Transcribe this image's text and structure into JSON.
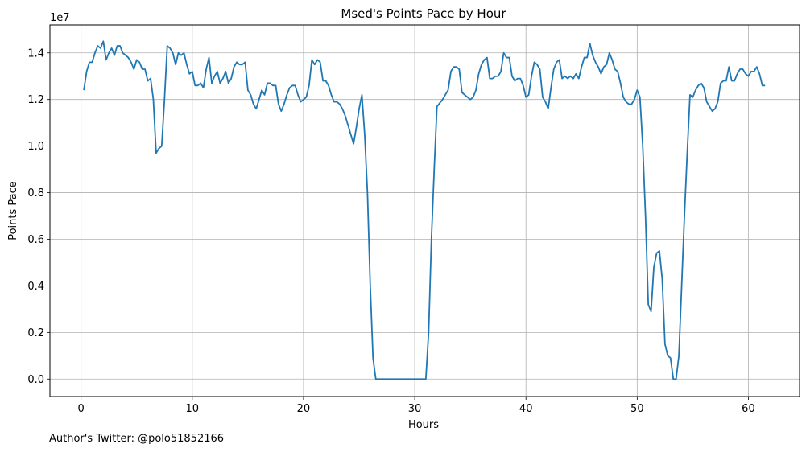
{
  "chart_data": {
    "type": "line",
    "title": "Msed's Points Pace by Hour",
    "xlabel": "Hours",
    "ylabel": "Points Pace",
    "y_multiplier_label": "1e7",
    "xlim": [
      -2.8,
      64.6
    ],
    "ylim": [
      -0.075,
      1.52
    ],
    "x_ticks": [
      0,
      10,
      20,
      30,
      40,
      50,
      60
    ],
    "y_ticks": [
      0.0,
      0.2,
      0.4,
      0.6,
      0.8,
      1.0,
      1.2,
      1.4
    ],
    "y_tick_labels": [
      "0.0",
      "0.2",
      "0.4",
      "0.6",
      "0.8",
      "1.0",
      "1.2",
      "1.4"
    ],
    "grid": true,
    "line_color": "#1f77b4",
    "series": [
      {
        "x": [
          0.25,
          0.5,
          0.75,
          1.0,
          1.25,
          1.5,
          1.75,
          2.0,
          2.25,
          2.5,
          2.75,
          3.0,
          3.25,
          3.5,
          3.75,
          4.0,
          4.25,
          4.5,
          4.75,
          5.0,
          5.25,
          5.5,
          5.75,
          6.0,
          6.25,
          6.5,
          6.75,
          7.0,
          7.25,
          7.5,
          7.75,
          8.0,
          8.25,
          8.5,
          8.75,
          9.0,
          9.25,
          9.5,
          9.75,
          10.0,
          10.25,
          10.5,
          10.75,
          11.0,
          11.25,
          11.5,
          11.75,
          12.0,
          12.25,
          12.5,
          12.75,
          13.0,
          13.25,
          13.5,
          13.75,
          14.0,
          14.25,
          14.5,
          14.75,
          15.0,
          15.25,
          15.5,
          15.75,
          16.0,
          16.25,
          16.5,
          16.75,
          17.0,
          17.25,
          17.5,
          17.75,
          18.0,
          18.25,
          18.5,
          18.75,
          19.0,
          19.25,
          19.5,
          19.75,
          20.0,
          20.25,
          20.5,
          20.75,
          21.0,
          21.25,
          21.5,
          21.75,
          22.0,
          22.25,
          22.5,
          22.75,
          23.0,
          23.25,
          23.5,
          23.75,
          24.0,
          24.25,
          24.5,
          24.75,
          25.0,
          25.25,
          25.5,
          25.75,
          26.0,
          26.25,
          26.5,
          27.0,
          28.0,
          29.0,
          30.0,
          31.0,
          31.25,
          31.5,
          31.75,
          32.0,
          32.5,
          33.0,
          33.25,
          33.5,
          33.75,
          34.0,
          34.25,
          34.5,
          35.0,
          35.25,
          35.5,
          35.75,
          36.0,
          36.25,
          36.5,
          36.75,
          37.0,
          37.25,
          37.5,
          37.75,
          38.0,
          38.25,
          38.5,
          38.75,
          39.0,
          39.25,
          39.5,
          39.75,
          40.0,
          40.25,
          40.5,
          40.75,
          41.0,
          41.25,
          41.5,
          41.75,
          42.0,
          42.25,
          42.5,
          42.75,
          43.0,
          43.25,
          43.5,
          43.75,
          44.0,
          44.25,
          44.5,
          44.75,
          45.0,
          45.25,
          45.5,
          45.75,
          46.0,
          46.25,
          46.5,
          46.75,
          47.0,
          47.25,
          47.5,
          47.75,
          48.0,
          48.25,
          48.5,
          48.75,
          49.0,
          49.25,
          49.5,
          49.75,
          50.0,
          50.25,
          50.5,
          50.75,
          51.0,
          51.25,
          51.5,
          51.75,
          52.0,
          52.25,
          52.5,
          52.75,
          53.0,
          53.25,
          53.5,
          53.75,
          54.0,
          54.25,
          54.5,
          54.75,
          55.0,
          55.25,
          55.5,
          55.75,
          56.0,
          56.25,
          56.5,
          56.75,
          57.0,
          57.25,
          57.5,
          57.75,
          58.0,
          58.25,
          58.5,
          58.75,
          59.0,
          59.25,
          59.5,
          59.75,
          60.0,
          60.25,
          60.5,
          60.75,
          61.0,
          61.25,
          61.5
        ],
        "values": [
          1.24,
          1.32,
          1.36,
          1.36,
          1.4,
          1.43,
          1.42,
          1.45,
          1.37,
          1.4,
          1.42,
          1.39,
          1.43,
          1.43,
          1.4,
          1.39,
          1.38,
          1.36,
          1.33,
          1.37,
          1.36,
          1.33,
          1.33,
          1.28,
          1.29,
          1.2,
          0.97,
          0.99,
          1.0,
          1.2,
          1.43,
          1.42,
          1.4,
          1.35,
          1.4,
          1.39,
          1.4,
          1.35,
          1.31,
          1.32,
          1.26,
          1.26,
          1.27,
          1.25,
          1.33,
          1.38,
          1.27,
          1.3,
          1.32,
          1.27,
          1.29,
          1.32,
          1.27,
          1.29,
          1.34,
          1.36,
          1.35,
          1.35,
          1.36,
          1.24,
          1.22,
          1.18,
          1.16,
          1.2,
          1.24,
          1.22,
          1.27,
          1.27,
          1.26,
          1.26,
          1.18,
          1.15,
          1.18,
          1.22,
          1.25,
          1.26,
          1.26,
          1.22,
          1.19,
          1.2,
          1.21,
          1.26,
          1.37,
          1.35,
          1.37,
          1.36,
          1.28,
          1.28,
          1.26,
          1.22,
          1.19,
          1.19,
          1.18,
          1.16,
          1.13,
          1.09,
          1.05,
          1.01,
          1.08,
          1.16,
          1.22,
          1.05,
          0.8,
          0.4,
          0.09,
          0.0,
          0.0,
          0.0,
          0.0,
          0.0,
          0.0,
          0.2,
          0.6,
          0.9,
          1.17,
          1.2,
          1.24,
          1.32,
          1.34,
          1.34,
          1.33,
          1.23,
          1.22,
          1.2,
          1.21,
          1.24,
          1.31,
          1.35,
          1.37,
          1.38,
          1.29,
          1.29,
          1.3,
          1.3,
          1.32,
          1.4,
          1.38,
          1.38,
          1.3,
          1.28,
          1.29,
          1.29,
          1.26,
          1.21,
          1.22,
          1.3,
          1.36,
          1.35,
          1.33,
          1.21,
          1.19,
          1.16,
          1.25,
          1.33,
          1.36,
          1.37,
          1.29,
          1.3,
          1.29,
          1.3,
          1.29,
          1.31,
          1.29,
          1.34,
          1.38,
          1.38,
          1.44,
          1.39,
          1.36,
          1.34,
          1.31,
          1.34,
          1.35,
          1.4,
          1.37,
          1.33,
          1.32,
          1.27,
          1.21,
          1.19,
          1.18,
          1.18,
          1.2,
          1.24,
          1.21,
          1.0,
          0.7,
          0.32,
          0.29,
          0.48,
          0.54,
          0.55,
          0.43,
          0.15,
          0.1,
          0.09,
          0.0,
          0.0,
          0.1,
          0.4,
          0.7,
          0.97,
          1.22,
          1.21,
          1.24,
          1.26,
          1.27,
          1.25,
          1.19,
          1.17,
          1.15,
          1.16,
          1.19,
          1.27,
          1.28,
          1.28,
          1.34,
          1.28,
          1.28,
          1.31,
          1.33,
          1.33,
          1.31,
          1.3,
          1.32,
          1.32,
          1.34,
          1.31,
          1.26,
          1.26
        ]
      }
    ]
  },
  "footer_text": "Author's Twitter: @polo51852166"
}
